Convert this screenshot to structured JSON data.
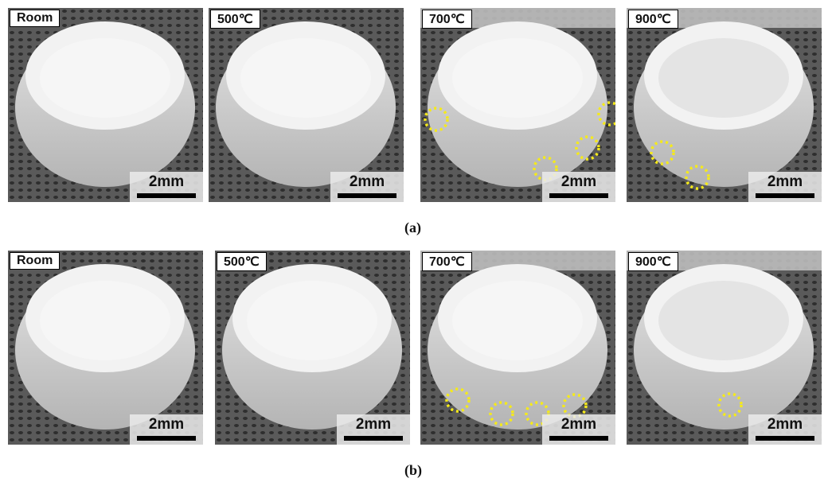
{
  "figure": {
    "rows": [
      {
        "caption": "(a)",
        "panels": [
          {
            "label": "Room",
            "scale": "2mm",
            "highlighted_regions": 0
          },
          {
            "label": "500℃",
            "scale": "2mm",
            "highlighted_regions": 0
          },
          {
            "label": "700℃",
            "scale": "2mm",
            "highlighted_regions": 4
          },
          {
            "label": "900℃",
            "scale": "2mm",
            "highlighted_regions": 2
          }
        ]
      },
      {
        "caption": "(b)",
        "panels": [
          {
            "label": "Room",
            "scale": "2mm",
            "highlighted_regions": 0
          },
          {
            "label": "500℃",
            "scale": "2mm",
            "highlighted_regions": 0
          },
          {
            "label": "700℃",
            "scale": "2mm",
            "highlighted_regions": 4
          },
          {
            "label": "900℃",
            "scale": "2mm",
            "highlighted_regions": 1
          }
        ]
      }
    ],
    "colors": {
      "highlight": "#f5ea1a",
      "background": "#4a4a4a",
      "sample": "#cfcfcf"
    }
  }
}
